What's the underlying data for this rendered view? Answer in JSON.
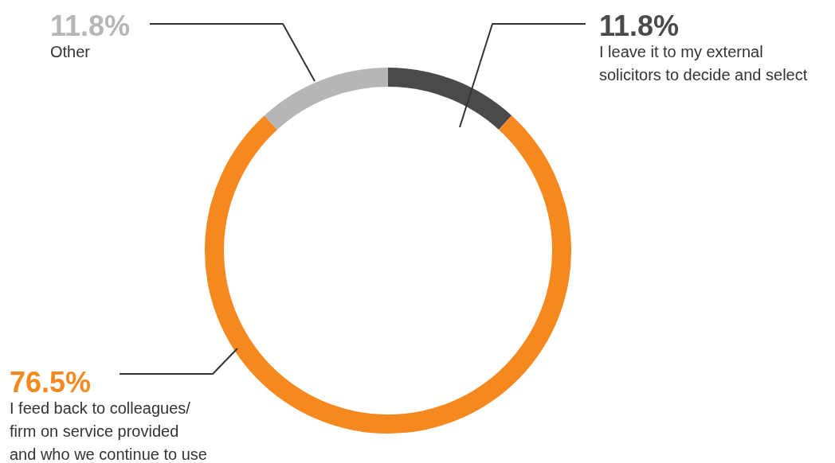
{
  "chart_data": {
    "type": "donut",
    "categories": [
      "I leave it to my external solicitors to decide and select",
      "I feed back to colleagues/ firm on service provided and who we continue to use",
      "Other"
    ],
    "values": [
      11.8,
      76.5,
      11.8
    ],
    "colors": [
      "#4a4a4c",
      "#f5891f",
      "#b5b6b8"
    ],
    "value_labels": [
      "11.8%",
      "76.5%",
      "11.8%"
    ]
  }
}
